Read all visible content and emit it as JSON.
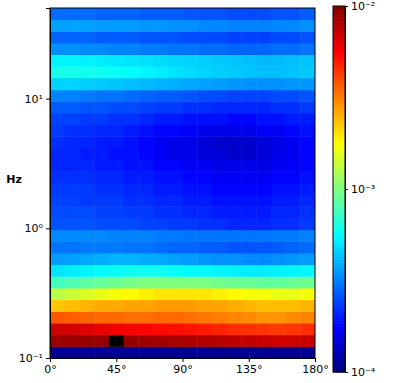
{
  "chart_data": {
    "type": "heatmap",
    "y_label": "Hz",
    "log": "y",
    "xlim": [
      0,
      180
    ],
    "xticks": [
      {
        "value": 0,
        "label": "0°"
      },
      {
        "value": 45,
        "label": "45°"
      },
      {
        "value": 90,
        "label": "90°"
      },
      {
        "value": 135,
        "label": "135°"
      },
      {
        "value": 180,
        "label": "180°"
      }
    ],
    "ylim": [
      0.1,
      50
    ],
    "yticks": [
      {
        "value": 0.1,
        "label": "10⁻¹"
      },
      {
        "value": 1,
        "label": "10⁰"
      },
      {
        "value": 10,
        "label": "10¹"
      }
    ],
    "x_edges": [
      0,
      10,
      20,
      30,
      40,
      50,
      60,
      70,
      80,
      90,
      100,
      110,
      120,
      130,
      140,
      150,
      160,
      170,
      180
    ],
    "y_edges": [
      0.1,
      0.123,
      0.151,
      0.186,
      0.229,
      0.282,
      0.347,
      0.427,
      0.525,
      0.646,
      0.794,
      0.977,
      1.2,
      1.48,
      1.82,
      2.24,
      2.75,
      3.39,
      4.17,
      5.13,
      6.31,
      7.76,
      9.55,
      11.7,
      14.5,
      17.8,
      21.9,
      26.9,
      33.1,
      40.7,
      50
    ],
    "cells": [
      [
        0.00011,
        0.00011,
        0.00011,
        0.00011,
        0.00011,
        0.00011,
        0.00011,
        0.00011,
        0.00011,
        0.00011,
        0.00011,
        0.00011,
        0.00011,
        0.00011,
        0.00011,
        0.00011,
        0.00011,
        0.00011
      ],
      [
        0.0088,
        0.0089,
        0.009,
        0.0091,
        0.012,
        0.009,
        0.0088,
        0.0086,
        0.0084,
        0.0082,
        0.008,
        0.0078,
        0.0076,
        0.0074,
        0.0072,
        0.007,
        0.007,
        0.0072
      ],
      [
        0.007,
        0.0068,
        0.0065,
        0.0062,
        0.006,
        0.0058,
        0.0056,
        0.0054,
        0.0053,
        0.0052,
        0.005,
        0.0048,
        0.0046,
        0.0045,
        0.0044,
        0.0043,
        0.0044,
        0.0046
      ],
      [
        0.0038,
        0.0037,
        0.0036,
        0.0035,
        0.0035,
        0.0034,
        0.0034,
        0.0035,
        0.0035,
        0.0034,
        0.0033,
        0.0032,
        0.0031,
        0.003,
        0.0029,
        0.0029,
        0.003,
        0.0031
      ],
      [
        0.0023,
        0.0024,
        0.0025,
        0.0026,
        0.0026,
        0.0027,
        0.0027,
        0.0028,
        0.0028,
        0.0028,
        0.0027,
        0.0027,
        0.0026,
        0.0025,
        0.0024,
        0.0024,
        0.0024,
        0.0025
      ],
      [
        0.0013,
        0.0014,
        0.0015,
        0.0016,
        0.0017,
        0.0018,
        0.0019,
        0.002,
        0.002,
        0.002,
        0.002,
        0.0019,
        0.0018,
        0.0017,
        0.0017,
        0.0016,
        0.0016,
        0.0017
      ],
      [
        0.00075,
        0.0008,
        0.00085,
        0.0009,
        0.00093,
        0.00096,
        0.001,
        0.001,
        0.001,
        0.001,
        0.00098,
        0.00095,
        0.00092,
        0.0009,
        0.00088,
        0.00088,
        0.0009,
        0.00092
      ],
      [
        0.0005,
        0.00052,
        0.00054,
        0.00056,
        0.00058,
        0.0006,
        0.0006,
        0.0006,
        0.00058,
        0.00056,
        0.00055,
        0.00054,
        0.00053,
        0.00052,
        0.00052,
        0.00053,
        0.00054,
        0.00055
      ],
      [
        0.00036,
        0.00037,
        0.00038,
        0.00039,
        0.0004,
        0.0004,
        0.00039,
        0.00038,
        0.00037,
        0.00036,
        0.00035,
        0.00034,
        0.00034,
        0.00033,
        0.00033,
        0.00034,
        0.00035,
        0.00036
      ],
      [
        0.0003,
        0.0003,
        0.00031,
        0.00031,
        0.00031,
        0.0003,
        0.0003,
        0.00029,
        0.00028,
        0.00028,
        0.00027,
        0.00027,
        0.00026,
        0.00026,
        0.00026,
        0.00027,
        0.00028,
        0.00029
      ],
      [
        0.00033,
        0.00033,
        0.00033,
        0.00033,
        0.00032,
        0.00032,
        0.00032,
        0.00031,
        0.00031,
        0.0003,
        0.0003,
        0.0003,
        0.0003,
        0.0003,
        0.0003,
        0.00031,
        0.00031,
        0.00032
      ],
      [
        0.00026,
        0.00026,
        0.00026,
        0.00025,
        0.00025,
        0.00025,
        0.00024,
        0.00024,
        0.00023,
        0.00023,
        0.00022,
        0.00022,
        0.00021,
        0.00021,
        0.00021,
        0.00022,
        0.00022,
        0.00023
      ],
      [
        0.00025,
        0.00025,
        0.00025,
        0.00024,
        0.00024,
        0.00023,
        0.00023,
        0.00022,
        0.00022,
        0.00021,
        0.00021,
        0.0002,
        0.0002,
        0.0002,
        0.0002,
        0.00021,
        0.00021,
        0.00022
      ],
      [
        0.00024,
        0.00024,
        0.00023,
        0.00023,
        0.00023,
        0.00022,
        0.00022,
        0.00021,
        0.00021,
        0.0002,
        0.0002,
        0.00019,
        0.00019,
        0.00019,
        0.00019,
        0.0002,
        0.0002,
        0.00021
      ],
      [
        0.00023,
        0.00023,
        0.00023,
        0.00022,
        0.00022,
        0.00021,
        0.00021,
        0.0002,
        0.0002,
        0.00019,
        0.00019,
        0.00018,
        0.00018,
        0.00018,
        0.00018,
        0.00019,
        0.00019,
        0.0002
      ],
      [
        0.00022,
        0.00022,
        0.00022,
        0.00021,
        0.00021,
        0.0002,
        0.0002,
        0.00019,
        0.00019,
        0.00018,
        0.00018,
        0.00017,
        0.00017,
        0.00017,
        0.00017,
        0.00018,
        0.00018,
        0.00019
      ],
      [
        0.00021,
        0.00021,
        0.00021,
        0.0002,
        0.0002,
        0.00019,
        0.00019,
        0.00018,
        0.00018,
        0.00017,
        0.00017,
        0.00016,
        0.00016,
        0.00016,
        0.00016,
        0.00017,
        0.00017,
        0.00018
      ],
      [
        0.00021,
        0.00021,
        0.0002,
        0.0002,
        0.00019,
        0.00019,
        0.00018,
        0.00017,
        0.00016,
        0.00016,
        0.00015,
        0.00015,
        0.00014,
        0.00014,
        0.00015,
        0.00016,
        0.00017,
        0.00018
      ],
      [
        0.00022,
        0.00021,
        0.00021,
        0.0002,
        0.0002,
        0.00019,
        0.00018,
        0.00017,
        0.00016,
        0.00016,
        0.00015,
        0.00014,
        0.00014,
        0.00014,
        0.00015,
        0.00016,
        0.00017,
        0.00018
      ],
      [
        0.00023,
        0.00022,
        0.00022,
        0.00021,
        0.00021,
        0.0002,
        0.00019,
        0.00018,
        0.00018,
        0.00017,
        0.00016,
        0.00016,
        0.00016,
        0.00016,
        0.00017,
        0.00017,
        0.00018,
        0.00019
      ],
      [
        0.00024,
        0.00024,
        0.00023,
        0.00023,
        0.00022,
        0.00022,
        0.00021,
        0.0002,
        0.0002,
        0.00019,
        0.00019,
        0.00019,
        0.00018,
        0.00018,
        0.00019,
        0.00019,
        0.0002,
        0.0002
      ],
      [
        0.00027,
        0.00027,
        0.00026,
        0.00026,
        0.00025,
        0.00025,
        0.00024,
        0.00023,
        0.00023,
        0.00022,
        0.00022,
        0.00021,
        0.00021,
        0.00021,
        0.00021,
        0.00022,
        0.00022,
        0.00023
      ],
      [
        0.00032,
        0.00032,
        0.00031,
        0.0003,
        0.0003,
        0.00029,
        0.00028,
        0.00027,
        0.00027,
        0.00026,
        0.00025,
        0.00025,
        0.00024,
        0.00024,
        0.00024,
        0.00025,
        0.00025,
        0.00026
      ],
      [
        0.00046,
        0.00046,
        0.00045,
        0.00044,
        0.00043,
        0.00042,
        0.00041,
        0.0004,
        0.00039,
        0.00038,
        0.00037,
        0.00036,
        0.00035,
        0.00034,
        0.00034,
        0.00034,
        0.00035,
        0.00035
      ],
      [
        0.00062,
        0.00062,
        0.00061,
        0.0006,
        0.00058,
        0.00056,
        0.00054,
        0.00052,
        0.0005,
        0.00048,
        0.00046,
        0.00045,
        0.00044,
        0.00043,
        0.00042,
        0.00042,
        0.00043,
        0.00044
      ],
      [
        0.00054,
        0.00054,
        0.00053,
        0.00052,
        0.00051,
        0.0005,
        0.00049,
        0.00048,
        0.00047,
        0.00046,
        0.00045,
        0.00044,
        0.00043,
        0.00042,
        0.00041,
        0.00041,
        0.00042,
        0.00043
      ],
      [
        0.00034,
        0.00034,
        0.00033,
        0.00033,
        0.00032,
        0.00032,
        0.00031,
        0.00031,
        0.0003,
        0.0003,
        0.00029,
        0.00029,
        0.00028,
        0.00028,
        0.00028,
        0.00029,
        0.00029,
        0.0003
      ],
      [
        0.00028,
        0.00028,
        0.00028,
        0.00027,
        0.00027,
        0.00027,
        0.00026,
        0.00026,
        0.00026,
        0.00025,
        0.00025,
        0.00025,
        0.00024,
        0.00024,
        0.00024,
        0.00025,
        0.00025,
        0.00026
      ],
      [
        0.00037,
        0.00037,
        0.00037,
        0.00036,
        0.00036,
        0.00036,
        0.00035,
        0.00035,
        0.00034,
        0.00034,
        0.00033,
        0.00033,
        0.00032,
        0.00032,
        0.00032,
        0.00033,
        0.00033,
        0.00034
      ],
      [
        0.00029,
        0.00029,
        0.00029,
        0.00028,
        0.00028,
        0.00028,
        0.00027,
        0.00027,
        0.00027,
        0.00026,
        0.00026,
        0.00026,
        0.00025,
        0.00025,
        0.00025,
        0.00026,
        0.00026,
        0.00027
      ]
    ],
    "colorbar": {
      "log": true,
      "range": [
        0.0001,
        0.01
      ],
      "ticks": [
        {
          "value": 0.0001,
          "label": "10⁻⁴"
        },
        {
          "value": 0.001,
          "label": "10⁻³"
        },
        {
          "value": 0.01,
          "label": "10⁻²"
        }
      ]
    }
  }
}
